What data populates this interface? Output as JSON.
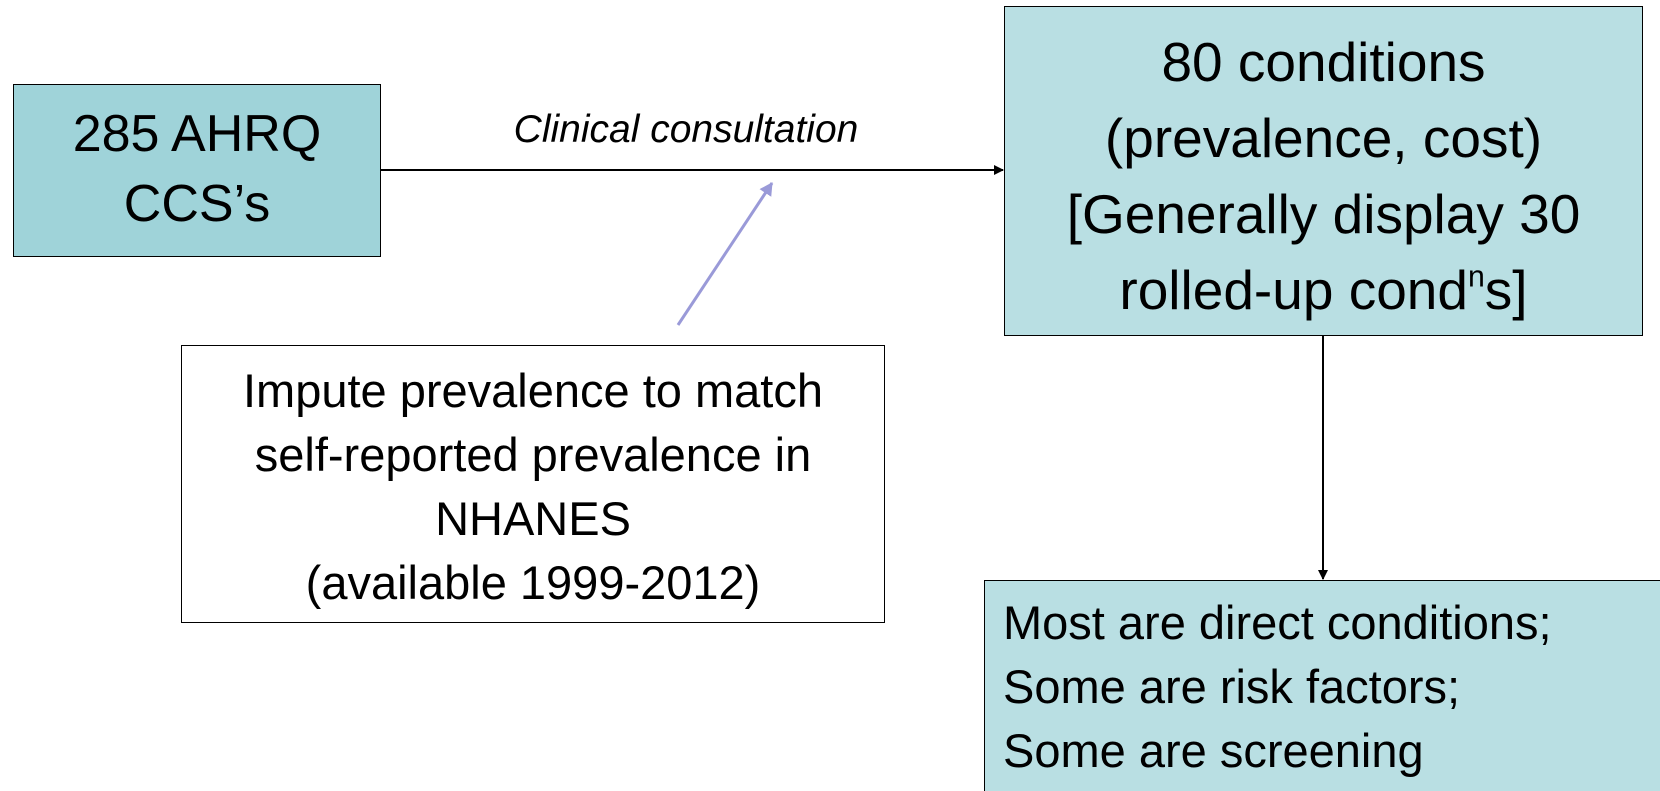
{
  "nodes": [
    {
      "lines": [
        "285 AHRQ",
        "CCS’s"
      ]
    },
    {
      "lines": [
        "80 conditions",
        "(prevalence, cost)",
        "[Generally display 30",
        [
          "rolled-up cond",
          "n",
          "s]"
        ]
      ]
    },
    {
      "lines": [
        "Impute prevalence to match",
        "self-reported prevalence in",
        "NHANES",
        "(available 1999-2012)"
      ]
    },
    {
      "lines": [
        "Most are direct conditions;",
        "Some are risk factors;",
        "Some are screening"
      ]
    }
  ],
  "edges": [
    {
      "label": "Clinical consultation"
    }
  ]
}
